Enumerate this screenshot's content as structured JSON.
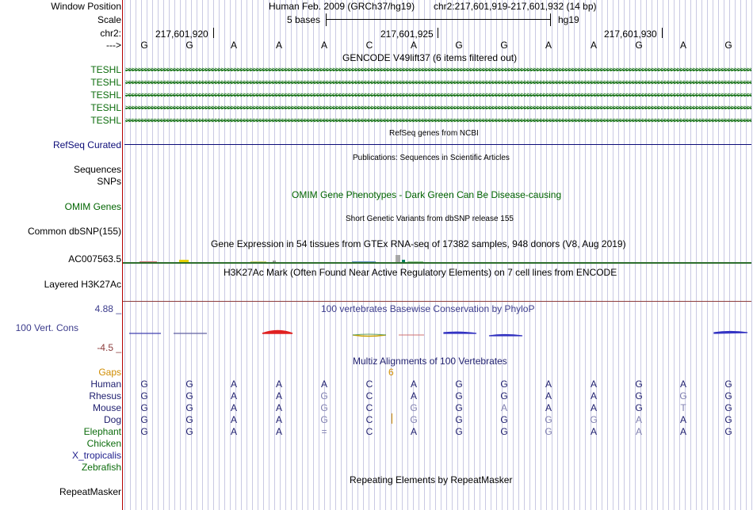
{
  "header": {
    "window_position_label": "Window Position",
    "scale_label": "Scale",
    "chrom_label": "chr2:",
    "strand_label": "--->",
    "assembly": "Human Feb. 2009 (GRCh37/hg19)",
    "position": "chr2:217,601,919-217,601,932 (14 bp)",
    "scale_text": "5 bases",
    "db": "hg19",
    "ticks": [
      "217,601,920",
      "217,601,925",
      "217,601,930"
    ]
  },
  "bases": [
    "G",
    "G",
    "A",
    "A",
    "A",
    "C",
    "A",
    "G",
    "G",
    "A",
    "A",
    "G",
    "A",
    "G"
  ],
  "tracks": {
    "gencode_title": "GENCODE V49lift37 (6 items filtered out)",
    "teshl": [
      "TESHL",
      "TESHL",
      "TESHL",
      "TESHL",
      "TESHL"
    ],
    "refseq_title": "RefSeq genes from NCBI",
    "refseq_label": "RefSeq Curated",
    "pubs_title": "Publications: Sequences in Scientific Articles",
    "sequences_label": "Sequences",
    "snps_label": "SNPs",
    "omim_title": "OMIM Gene Phenotypes - Dark Green Can Be Disease-causing",
    "omim_label": "OMIM Genes",
    "dbsnp_title": "Short Genetic Variants from dbSNP release 155",
    "dbsnp_label": "Common dbSNP(155)",
    "gtex_title": "Gene Expression in 54 tissues from GTEx RNA-seq of 17382 samples, 948 donors (V8, Aug 2019)",
    "gtex_label": "AC007563.5",
    "h3k_title": "H3K27Ac Mark (Often Found Near Active Regulatory Elements) on 7 cell lines from ENCODE",
    "h3k_label": "Layered H3K27Ac",
    "cons_title": "100 vertebrates Basewise Conservation by PhyloP",
    "cons_max": "4.88 _",
    "cons_label": "100 Vert. Cons",
    "cons_min": "-4.5 _",
    "multiz_title": "Multiz Alignments of 100 Vertebrates",
    "gaps_label": "Gaps",
    "gap_count": "6",
    "repeat_title": "Repeating Elements by RepeatMasker",
    "repeat_label": "RepeatMasker"
  },
  "species": [
    {
      "name": "Human",
      "bases": [
        "G",
        "G",
        "A",
        "A",
        "A",
        "C",
        "A",
        "G",
        "G",
        "A",
        "A",
        "G",
        "A",
        "G"
      ]
    },
    {
      "name": "Rhesus",
      "bases": [
        "G",
        "G",
        "A",
        "A",
        "G",
        "C",
        "A",
        "G",
        "G",
        "A",
        "A",
        "G",
        "G",
        "G"
      ]
    },
    {
      "name": "Mouse",
      "bases": [
        "G",
        "G",
        "A",
        "A",
        "G",
        "C",
        "G",
        "G",
        "A",
        "A",
        "A",
        "G",
        "T",
        "G"
      ]
    },
    {
      "name": "Dog",
      "bases": [
        "G",
        "G",
        "A",
        "A",
        "G",
        "C",
        "G",
        "G",
        "G",
        "G",
        "G",
        "A",
        "A",
        "G"
      ]
    },
    {
      "name": "Elephant",
      "bases": [
        "G",
        "G",
        "A",
        "A",
        "=",
        "C",
        "A",
        "G",
        "G",
        "G",
        "A",
        "A",
        "A",
        "G"
      ]
    },
    {
      "name": "Chicken",
      "bases": []
    },
    {
      "name": "X_tropicalis",
      "bases": []
    },
    {
      "name": "Zebrafish",
      "bases": []
    }
  ],
  "colors": {
    "gencode": "#0c6c0c",
    "refseq": "#0c0c78",
    "omim": "#006400",
    "phylop_label": "#3c3c8c",
    "multiz": "#1e1e6e",
    "gaps": "#d08c00",
    "mismatch": "#8080b0"
  }
}
